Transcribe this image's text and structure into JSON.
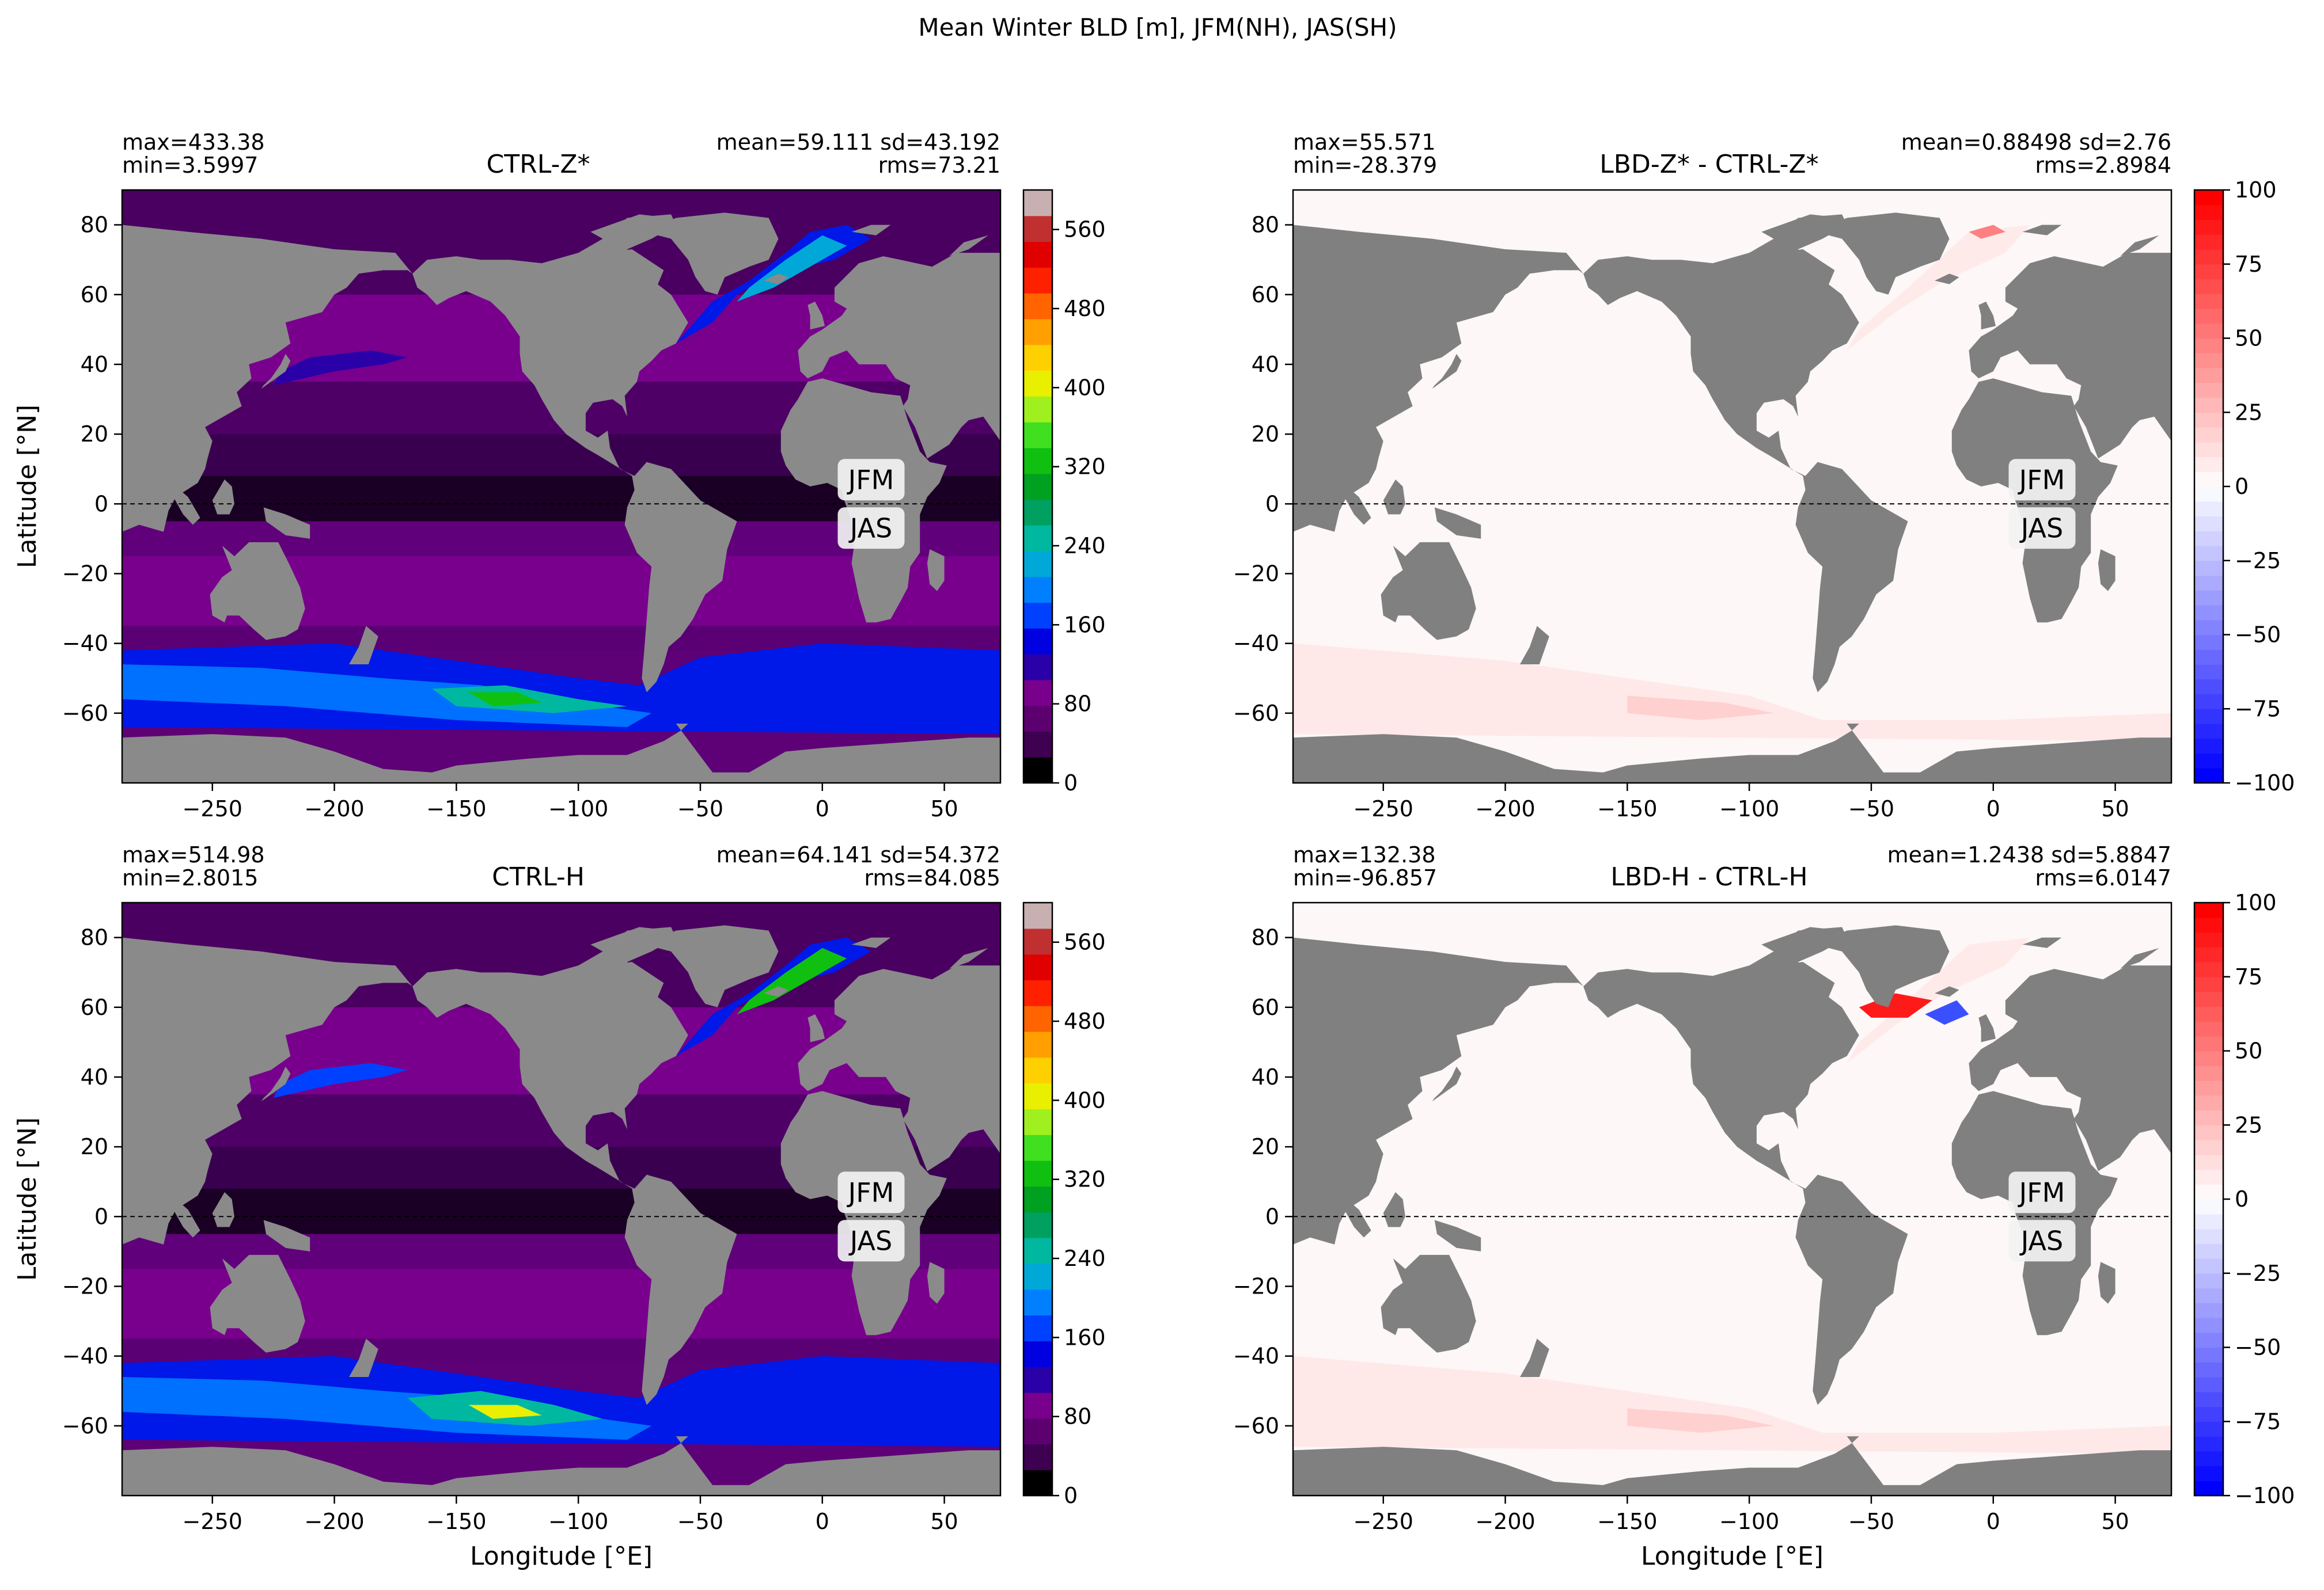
{
  "suptitle": "Mean Winter BLD [m], JFM(NH), JAS(SH)",
  "colors": {
    "land_light": "#8a8a8a",
    "land_dark": "#808080",
    "ocean_white": "#fdf7f7"
  },
  "chart_data": [
    {
      "type": "heatmap",
      "title": "CTRL-Z*",
      "stats": {
        "max": "max=433.38",
        "min": "min=3.5997",
        "mean_sd": "mean=59.111 sd=43.192",
        "rms": "rms=73.21"
      },
      "xlabel": "",
      "ylabel": "Latitude [°N]",
      "xlim": [
        -287,
        73
      ],
      "ylim": [
        -80,
        90
      ],
      "xticks": [
        "−250",
        "−200",
        "−150",
        "−100",
        "−50",
        "0",
        "50"
      ],
      "yticks": [
        "80",
        "60",
        "40",
        "20",
        "0",
        "−20",
        "−40",
        "−60"
      ],
      "colorbar": {
        "ticks": [
          "560",
          "480",
          "400",
          "320",
          "240",
          "160",
          "80",
          "0"
        ],
        "range": [
          0,
          600
        ],
        "palette": "ncl"
      },
      "annotations": [
        "JFM",
        "JAS"
      ]
    },
    {
      "type": "heatmap",
      "title": "LBD-Z* - CTRL-Z*",
      "stats": {
        "max": "max=55.571",
        "min": "min=-28.379",
        "mean_sd": "mean=0.88498 sd=2.76",
        "rms": "rms=2.8984"
      },
      "xlabel": "",
      "ylabel": "",
      "xlim": [
        -287,
        73
      ],
      "ylim": [
        -80,
        90
      ],
      "xticks": [
        "−250",
        "−200",
        "−150",
        "−100",
        "−50",
        "0",
        "50"
      ],
      "yticks": [
        "80",
        "60",
        "40",
        "20",
        "0",
        "−20",
        "−40",
        "−60"
      ],
      "colorbar": {
        "ticks": [
          "100",
          "75",
          "50",
          "25",
          "0",
          "−25",
          "−50",
          "−75",
          "−100"
        ],
        "range": [
          -100,
          100
        ],
        "palette": "bwr"
      },
      "annotations": [
        "JFM",
        "JAS"
      ]
    },
    {
      "type": "heatmap",
      "title": "CTRL-H",
      "stats": {
        "max": "max=514.98",
        "min": "min=2.8015",
        "mean_sd": "mean=64.141 sd=54.372",
        "rms": "rms=84.085"
      },
      "xlabel": "Longitude [°E]",
      "ylabel": "Latitude [°N]",
      "xlim": [
        -287,
        73
      ],
      "ylim": [
        -80,
        90
      ],
      "xticks": [
        "−250",
        "−200",
        "−150",
        "−100",
        "−50",
        "0",
        "50"
      ],
      "yticks": [
        "80",
        "60",
        "40",
        "20",
        "0",
        "−20",
        "−40",
        "−60"
      ],
      "colorbar": {
        "ticks": [
          "560",
          "480",
          "400",
          "320",
          "240",
          "160",
          "80",
          "0"
        ],
        "range": [
          0,
          600
        ],
        "palette": "ncl"
      },
      "annotations": [
        "JFM",
        "JAS"
      ]
    },
    {
      "type": "heatmap",
      "title": "LBD-H - CTRL-H",
      "stats": {
        "max": "max=132.38",
        "min": "min=-96.857",
        "mean_sd": "mean=1.2438 sd=5.8847",
        "rms": "rms=6.0147"
      },
      "xlabel": "Longitude [°E]",
      "ylabel": "",
      "xlim": [
        -287,
        73
      ],
      "ylim": [
        -80,
        90
      ],
      "xticks": [
        "−250",
        "−200",
        "−150",
        "−100",
        "−50",
        "0",
        "50"
      ],
      "yticks": [
        "80",
        "60",
        "40",
        "20",
        "0",
        "−20",
        "−40",
        "−60"
      ],
      "colorbar": {
        "ticks": [
          "100",
          "75",
          "50",
          "25",
          "0",
          "−25",
          "−50",
          "−75",
          "−100"
        ],
        "range": [
          -100,
          100
        ],
        "palette": "bwr"
      },
      "annotations": [
        "JFM",
        "JAS"
      ]
    }
  ]
}
